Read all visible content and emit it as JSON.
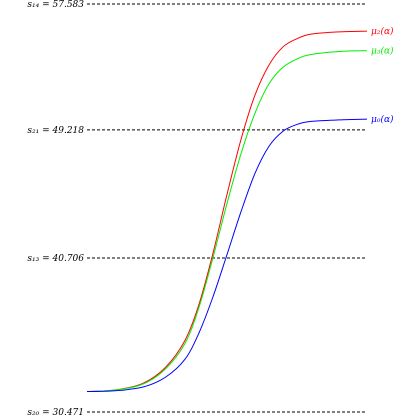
{
  "chart_data": {
    "type": "line",
    "title": "",
    "xlabel": "",
    "ylabel": "",
    "x_range": [
      0,
      1
    ],
    "ylim": [
      30.471,
      57.583
    ],
    "reference_lines": [
      {
        "label": "s₁₄ = 57.583",
        "value": 57.583
      },
      {
        "label": "s₂₁ = 49.218",
        "value": 49.218
      },
      {
        "label": "s₁₃ = 40.706",
        "value": 40.706
      },
      {
        "label": "s₂₀ = 30.471",
        "value": 30.471
      }
    ],
    "series": [
      {
        "name": "μ₂(α)",
        "color": "#ff0000",
        "x": [
          0,
          0.1,
          0.2,
          0.28,
          0.35,
          0.4,
          0.45,
          0.5,
          0.55,
          0.6,
          0.65,
          0.7,
          0.75,
          0.8,
          0.9,
          1
        ],
        "y": [
          31.83,
          31.93,
          32.38,
          33.43,
          35.23,
          37.63,
          41.03,
          44.93,
          48.58,
          51.53,
          53.53,
          54.73,
          55.28,
          55.58,
          55.73,
          55.78
        ]
      },
      {
        "name": "μ₃(α)",
        "color": "#00ee00",
        "x": [
          0,
          0.1,
          0.2,
          0.28,
          0.35,
          0.4,
          0.45,
          0.5,
          0.55,
          0.6,
          0.65,
          0.7,
          0.75,
          0.8,
          0.9,
          1
        ],
        "y": [
          31.83,
          31.93,
          32.33,
          33.33,
          35.03,
          37.43,
          40.73,
          44.33,
          47.63,
          50.33,
          52.28,
          53.38,
          53.93,
          54.23,
          54.43,
          54.48
        ]
      },
      {
        "name": "μ₀(α)",
        "color": "#0000ff",
        "x": [
          0,
          0.1,
          0.2,
          0.28,
          0.35,
          0.4,
          0.45,
          0.5,
          0.55,
          0.6,
          0.65,
          0.7,
          0.75,
          0.8,
          0.9,
          1
        ],
        "y": [
          31.83,
          31.88,
          32.13,
          32.78,
          33.98,
          35.73,
          38.13,
          40.93,
          43.78,
          46.33,
          48.13,
          49.13,
          49.58,
          49.78,
          49.88,
          49.93
        ]
      }
    ]
  }
}
